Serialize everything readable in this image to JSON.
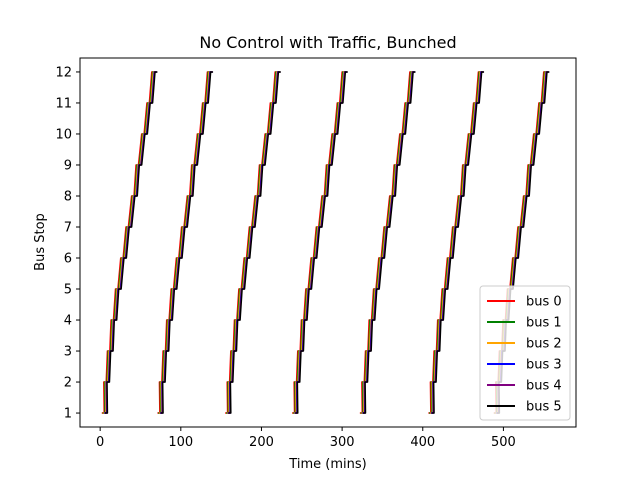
{
  "chart_data": {
    "type": "line",
    "title": "No Control with Traffic, Bunched",
    "xlabel": "Time (mins)",
    "ylabel": "Bus Stop",
    "xlim": [
      -25,
      590
    ],
    "ylim": [
      0.55,
      12.45
    ],
    "xticks": [
      0,
      100,
      200,
      300,
      400,
      500
    ],
    "yticks": [
      1,
      2,
      3,
      4,
      5,
      6,
      7,
      8,
      9,
      10,
      11,
      12
    ],
    "grid": false,
    "legend_position": "lower-right",
    "loop_starts": [
      2,
      71,
      155,
      238,
      322,
      407,
      488
    ],
    "stop_times_from_loop_start": [
      0,
      2.5,
      7,
      11.5,
      17,
      23.5,
      30,
      37,
      42.5,
      49.5,
      56,
      62
    ],
    "dwell_minutes": 3,
    "series": [
      {
        "name": "bus 0",
        "color": "#ff0000",
        "offset_minutes": 0
      },
      {
        "name": "bus 1",
        "color": "#008000",
        "offset_minutes": 1
      },
      {
        "name": "bus 2",
        "color": "#ffa500",
        "offset_minutes": 2
      },
      {
        "name": "bus 3",
        "color": "#0000ff",
        "offset_minutes": 3
      },
      {
        "name": "bus 4",
        "color": "#800080",
        "offset_minutes": 3.5
      },
      {
        "name": "bus 5",
        "color": "#000000",
        "offset_minutes": 4
      }
    ]
  }
}
